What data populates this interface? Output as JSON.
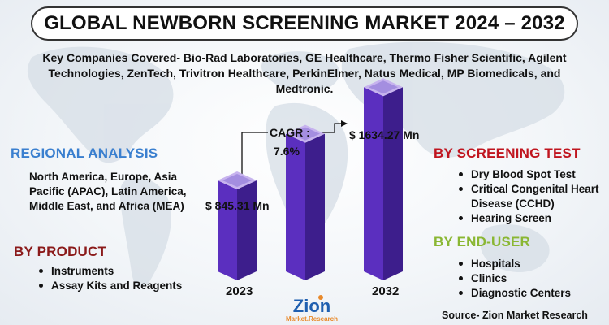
{
  "title": "GLOBAL NEWBORN SCREENING MARKET 2024 – 2032",
  "companies": "Key Companies Covered- Bio-Rad Laboratories, GE Healthcare, Thermo Fisher Scientific, Agilent Technologies, ZenTech, Trivitron Healthcare, PerkinElmer, Natus Medical, MP Biomedicals, and Medtronic.",
  "regional": {
    "heading": "REGIONAL ANALYSIS",
    "text": "North America, Europe, Asia Pacific (APAC), Latin America, Middle East, and Africa (MEA)"
  },
  "product": {
    "heading": "BY PRODUCT",
    "items": [
      "Instruments",
      "Assay Kits and Reagents"
    ]
  },
  "screening": {
    "heading": "BY SCREENING TEST",
    "items": [
      "Dry Blood Spot Test",
      "Critical Congenital Heart Disease (CCHD)",
      "Hearing Screen"
    ]
  },
  "enduser": {
    "heading": "BY END-USER",
    "items": [
      "Hospitals",
      "Clinics",
      "Diagnostic Centers"
    ]
  },
  "chart_data": {
    "type": "bar",
    "categories": [
      "2023",
      "",
      "2032"
    ],
    "values": [
      845.31,
      1240,
      1634.27
    ],
    "value_labels": [
      "$ 845.31 Mn",
      "",
      "$ 1634.27 Mn"
    ],
    "cagr_label": "CAGR :",
    "cagr_value": "7.6%",
    "colors": {
      "front": "#3d1e8c",
      "side": "#5b2fbf",
      "top": "#c7b3ee",
      "topInner": "#a48ee0"
    },
    "ylim": [
      0,
      1800
    ]
  },
  "logo": {
    "main": "Zion",
    "sub": "Market.Research"
  },
  "source": "Source- Zion Market Research",
  "colors": {
    "regional": "#3a7fcf",
    "product": "#8b1a1a",
    "screening": "#c0151f",
    "enduser": "#8ab733"
  }
}
